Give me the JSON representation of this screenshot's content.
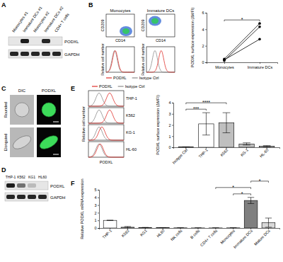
{
  "panels": [
    "A",
    "B",
    "C",
    "D",
    "E",
    "F"
  ],
  "blot_a": {
    "lanes": [
      "Monocytes #1",
      "Immature DCs #1",
      "Monocytes #2",
      "Immature DCs #2",
      "CD4+ T cells"
    ],
    "rows": [
      "PODXL",
      "GAPDH"
    ],
    "intensity": [
      [
        0,
        0.95,
        0,
        0.9,
        0
      ],
      [
        0.9,
        0.9,
        0.9,
        0.9,
        0.9
      ]
    ]
  },
  "flow_b": {
    "plots": [
      {
        "title": "Monocytes",
        "population": [
          0.7,
          0.25
        ],
        "shift": 0.02
      },
      {
        "title": "Immature DCs",
        "population": [
          0.3,
          0.7
        ],
        "shift": 0.22
      }
    ],
    "x_label": "CD14",
    "y_label": "CD209",
    "hist_y_label": "Relative cell number",
    "legend": [
      "PODXL",
      "Isotype Ctrl"
    ]
  },
  "image_c": {
    "columns": [
      "DIC",
      "PODXL"
    ],
    "rows": [
      "Rounded",
      "Elongated"
    ]
  },
  "blot_d": {
    "lanes": [
      "THP-1",
      "K562",
      "KG1",
      "HL60"
    ],
    "rows": [
      "PODXL",
      "GAPDH"
    ],
    "intensity": [
      [
        0.95,
        0.55,
        0.2,
        0
      ],
      [
        0.9,
        0.9,
        0.9,
        0.9
      ]
    ]
  },
  "flow_e": {
    "plots": [
      {
        "title": "THP-1",
        "shift": 0.3
      },
      {
        "title": "K562",
        "shift": 0.3
      },
      {
        "title": "KG-1",
        "shift": 0.08
      },
      {
        "title": "HL-60",
        "shift": 0.03
      }
    ],
    "x_label": "PODXL",
    "y_label": "Relative cell number",
    "legend": [
      "PODXL",
      "Isotype Ctrl"
    ]
  },
  "chart_data": [
    {
      "type": "line",
      "categories": [
        "Monocytes",
        "Immature DCs"
      ],
      "series": [
        {
          "color": "#000000",
          "marker": "circle",
          "values": [
            0.4,
            4.7
          ]
        },
        {
          "color": "#000000",
          "marker": "circle",
          "values": [
            0.2,
            4.3
          ]
        },
        {
          "color": "#000000",
          "marker": "circle",
          "values": [
            0.3,
            2.8
          ]
        }
      ],
      "y_label": "PODXL surface expression (ΔMFI)",
      "ylim": [
        0,
        6
      ],
      "yticks": [
        0,
        2,
        4,
        6
      ],
      "annotations": [
        {
          "text": "*",
          "between": [
            0,
            1
          ]
        }
      ]
    },
    {
      "type": "bar",
      "categories": [
        "Isotype Ctrl",
        "THP-1",
        "K562",
        "KG-1",
        "HL-60"
      ],
      "values": [
        0.02,
        2.1,
        2.2,
        0.3,
        0.1
      ],
      "errors": [
        0.02,
        1.0,
        0.9,
        0.1,
        0.05
      ],
      "colors": [
        "#ffffff",
        "#ffffff",
        "#bfbfbf",
        "#bfbfbf",
        "#bfbfbf"
      ],
      "y_label": "PODXL surface expression (ΔMFI)",
      "ylim": [
        0,
        4
      ],
      "yticks": [
        0,
        1,
        2,
        3,
        4
      ],
      "annotations": [
        {
          "text": "***",
          "between": [
            0,
            1
          ]
        },
        {
          "text": "****",
          "between": [
            0,
            2
          ]
        }
      ]
    },
    {
      "type": "bar",
      "categories": [
        "THP-1",
        "K562",
        "KG1",
        "HL60",
        "NK cells",
        "B cells",
        "CD4+ T cells",
        "Monocytes",
        "Immature DCs",
        "Mature DCs"
      ],
      "values": [
        1,
        0.1,
        0.05,
        0.03,
        0.02,
        0.01,
        0.01,
        0.02,
        3.6,
        0.7
      ],
      "errors": [
        0.02,
        0.1,
        0.03,
        0.02,
        0.02,
        0.01,
        0.01,
        0.02,
        0.4,
        0.6
      ],
      "colors": [
        "#ffffff",
        "#bfbfbf",
        "#bfbfbf",
        "#bfbfbf",
        "#d9d9d9",
        "#d9d9d9",
        "#d9d9d9",
        "#d9d9d9",
        "#7f7f7f",
        "#d9d9d9"
      ],
      "y_label": "Relative PODXL mRNA expression",
      "ylim": [
        0,
        5
      ],
      "yticks": [
        0,
        1,
        2,
        3,
        4,
        5
      ],
      "annotations": [
        {
          "text": "*",
          "between": [
            7,
            8
          ]
        },
        {
          "text": "*",
          "between": [
            6,
            8
          ]
        },
        {
          "text": "*",
          "between": [
            8,
            9
          ]
        }
      ]
    }
  ]
}
